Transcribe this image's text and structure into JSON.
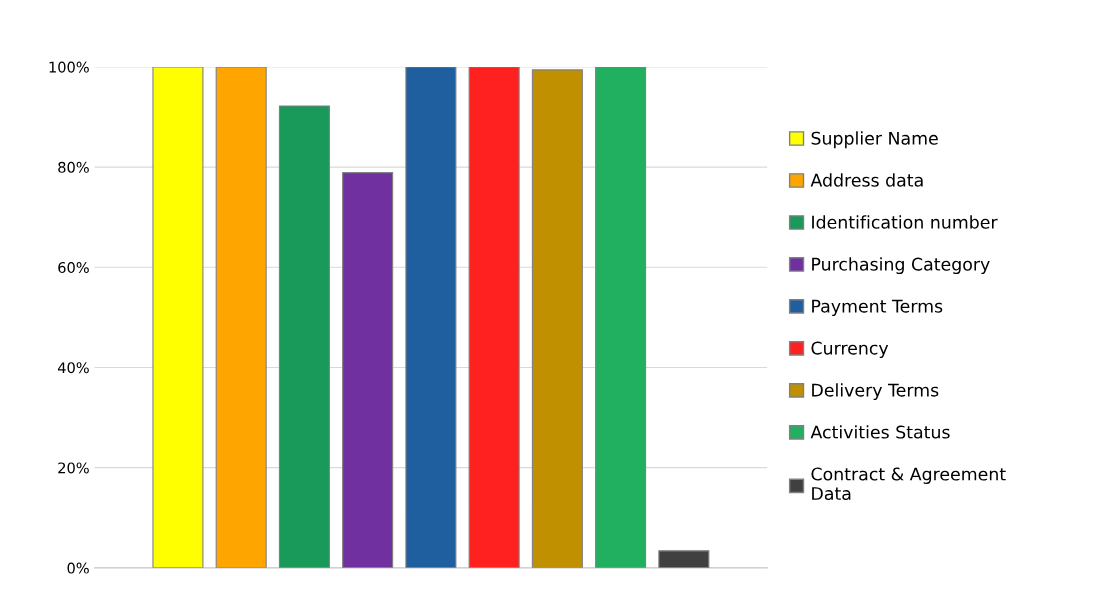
{
  "chart_data": {
    "type": "bar",
    "categories": [
      null
    ],
    "series": [
      {
        "name": "Supplier Name",
        "color": "#ffff00",
        "values": [
          100
        ]
      },
      {
        "name": "Address data",
        "color": "#ffa500",
        "values": [
          100
        ]
      },
      {
        "name": "Identification number",
        "color": "#1a9a5a",
        "values": [
          92.2
        ]
      },
      {
        "name": "Purchasing Category",
        "color": "#7030a0",
        "values": [
          78.9
        ]
      },
      {
        "name": "Payment Terms",
        "color": "#1f5f9f",
        "values": [
          100
        ]
      },
      {
        "name": "Currency",
        "color": "#ff2020",
        "values": [
          100
        ]
      },
      {
        "name": "Delivery Terms",
        "color": "#c09000",
        "values": [
          99.4
        ]
      },
      {
        "name": "Activities Status",
        "color": "#20b060",
        "values": [
          100
        ]
      },
      {
        "name": "Contract & Agreement Data",
        "color": "#404040",
        "values": [
          3.4
        ]
      }
    ],
    "ylim": [
      0,
      100
    ],
    "yticks": [
      {
        "value": 0,
        "label": "0%"
      },
      {
        "value": 20,
        "label": "20%"
      },
      {
        "value": 40,
        "label": "40%"
      },
      {
        "value": 60,
        "label": "60%"
      },
      {
        "value": 80,
        "label": "80%"
      },
      {
        "value": 100,
        "label": "100%"
      }
    ],
    "grid": "y",
    "legend": "right"
  }
}
